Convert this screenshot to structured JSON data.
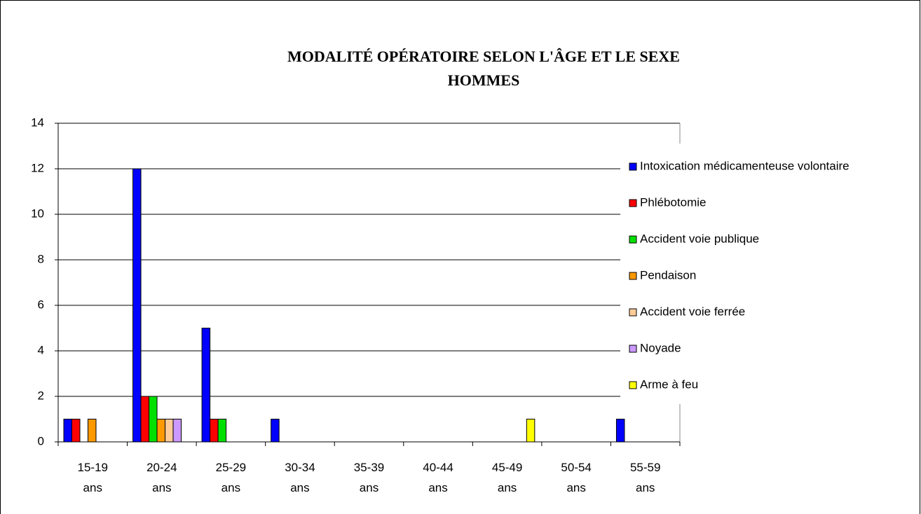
{
  "chart_data": {
    "type": "bar",
    "title": "MODALITÉ OPÉRATOIRE SELON L'ÂGE ET LE SEXE",
    "subtitle": "HOMMES",
    "categories": [
      "15-19 ans",
      "20-24 ans",
      "25-29 ans",
      "30-34 ans",
      "35-39 ans",
      "40-44 ans",
      "45-49 ans",
      "50-54 ans",
      "55-59 ans"
    ],
    "series": [
      {
        "name": "Intoxication médicamenteuse volontaire",
        "color": "#0000ff",
        "values": [
          1,
          12,
          5,
          1,
          0,
          0,
          0,
          0,
          1
        ]
      },
      {
        "name": "Phlébotomie",
        "color": "#ff0000",
        "values": [
          1,
          2,
          1,
          0,
          0,
          0,
          0,
          0,
          0
        ]
      },
      {
        "name": "Accident voie publique",
        "color": "#00e000",
        "values": [
          0,
          2,
          1,
          0,
          0,
          0,
          0,
          0,
          0
        ]
      },
      {
        "name": "Pendaison",
        "color": "#ff9900",
        "values": [
          1,
          1,
          0,
          0,
          0,
          0,
          0,
          0,
          0
        ]
      },
      {
        "name": "Accident voie ferrée",
        "color": "#ffcc99",
        "values": [
          0,
          1,
          0,
          0,
          0,
          0,
          0,
          0,
          0
        ]
      },
      {
        "name": "Noyade",
        "color": "#cc99ff",
        "values": [
          0,
          1,
          0,
          0,
          0,
          0,
          0,
          0,
          0
        ]
      },
      {
        "name": "Arme à feu",
        "color": "#ffff00",
        "values": [
          0,
          0,
          0,
          0,
          0,
          0,
          1,
          0,
          0
        ]
      }
    ],
    "ylim": [
      0,
      14
    ],
    "yticks": [
      0,
      2,
      4,
      6,
      8,
      10,
      12,
      14
    ],
    "grid": true,
    "legend": "right"
  }
}
